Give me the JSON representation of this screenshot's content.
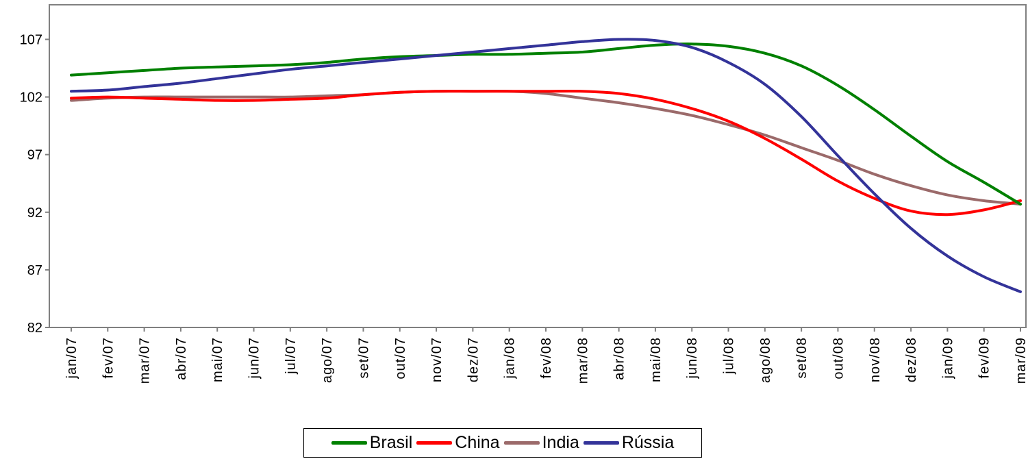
{
  "chart_data": {
    "type": "line",
    "categories": [
      "jan/07",
      "fev/07",
      "mar/07",
      "abr/07",
      "mai/07",
      "jun/07",
      "jul/07",
      "ago/07",
      "set/07",
      "out/07",
      "nov/07",
      "dez/07",
      "jan/08",
      "fev/08",
      "mar/08",
      "abr/08",
      "mai/08",
      "jun/08",
      "jul/08",
      "ago/08",
      "set/08",
      "out/08",
      "nov/08",
      "dez/08",
      "jan/09",
      "fev/09",
      "mar/09"
    ],
    "series": [
      {
        "name": "Brasil",
        "color": "#008000",
        "values": [
          103.9,
          104.1,
          104.3,
          104.5,
          104.6,
          104.7,
          104.8,
          105.0,
          105.3,
          105.5,
          105.6,
          105.7,
          105.7,
          105.8,
          105.9,
          106.2,
          106.5,
          106.6,
          106.4,
          105.8,
          104.7,
          103.0,
          100.9,
          98.6,
          96.4,
          94.6,
          92.7
        ]
      },
      {
        "name": "China",
        "color": "#ff0000",
        "values": [
          101.9,
          102.0,
          101.9,
          101.8,
          101.7,
          101.7,
          101.8,
          101.9,
          102.2,
          102.4,
          102.5,
          102.5,
          102.5,
          102.5,
          102.5,
          102.3,
          101.8,
          101.0,
          99.9,
          98.4,
          96.6,
          94.7,
          93.2,
          92.1,
          91.8,
          92.2,
          93.0
        ]
      },
      {
        "name": "India",
        "color": "#9b6a6a",
        "values": [
          101.7,
          101.9,
          102.0,
          102.0,
          102.0,
          102.0,
          102.0,
          102.1,
          102.2,
          102.4,
          102.5,
          102.5,
          102.5,
          102.3,
          101.9,
          101.5,
          101.0,
          100.4,
          99.6,
          98.7,
          97.6,
          96.5,
          95.3,
          94.3,
          93.5,
          93.0,
          92.7
        ]
      },
      {
        "name": "Rússia",
        "color": "#333399",
        "values": [
          102.5,
          102.6,
          102.9,
          103.2,
          103.6,
          104.0,
          104.4,
          104.7,
          105.0,
          105.3,
          105.6,
          105.9,
          106.2,
          106.5,
          106.8,
          107.0,
          106.9,
          106.3,
          105.0,
          103.1,
          100.3,
          96.9,
          93.6,
          90.6,
          88.2,
          86.4,
          85.1
        ]
      }
    ],
    "yticks": [
      82,
      87,
      92,
      97,
      102,
      107
    ],
    "ylim": [
      82,
      110
    ],
    "grid": false,
    "legend_position": "bottom"
  }
}
